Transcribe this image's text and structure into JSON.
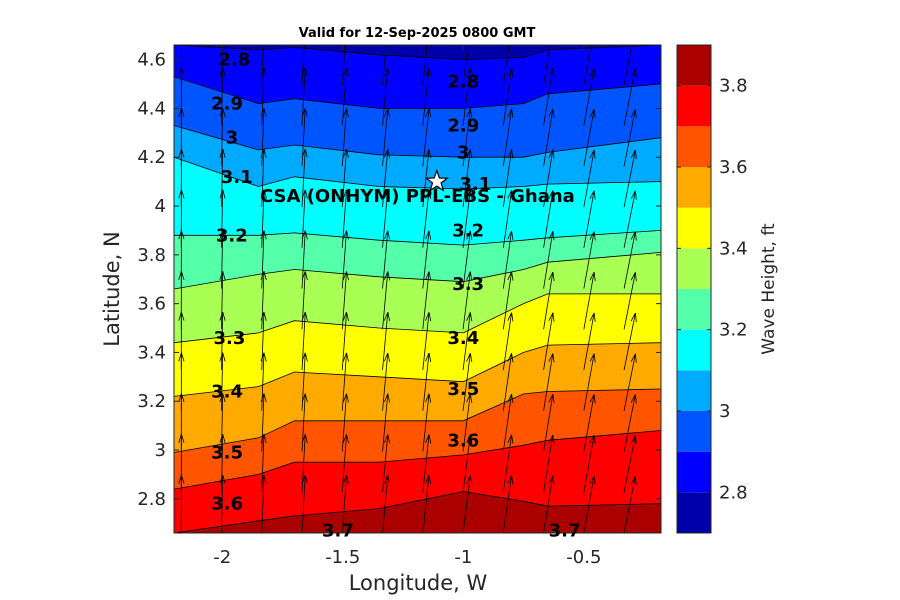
{
  "chart_data": {
    "type": "contourf",
    "title": "Valid for 12-Sep-2025 0800 GMT",
    "xlabel": "Longitude, W",
    "ylabel": "Latitude, N",
    "colorbar_label": "Wave Height, ft",
    "xlim": [
      -2.2,
      -0.18
    ],
    "ylim": [
      2.66,
      4.66
    ],
    "xticks": [
      -2,
      -1.5,
      -1,
      -0.5
    ],
    "xtick_labels": [
      "-2",
      "-1.5",
      "-1",
      "-0.5"
    ],
    "yticks": [
      2.8,
      3.0,
      3.2,
      3.4,
      3.6,
      3.8,
      4.0,
      4.2,
      4.4,
      4.6
    ],
    "ytick_labels": [
      "2.8",
      "3",
      "3.2",
      "3.4",
      "3.6",
      "3.8",
      "4",
      "4.2",
      "4.4",
      "4.6"
    ],
    "colorbar": {
      "min": 2.7,
      "max": 3.9,
      "ticks": [
        2.8,
        3.0,
        3.2,
        3.4,
        3.6,
        3.8
      ],
      "tick_labels": [
        "2.8",
        "3",
        "3.2",
        "3.4",
        "3.6",
        "3.8"
      ],
      "levels": [
        2.7,
        2.8,
        2.9,
        3.0,
        3.1,
        3.2,
        3.3,
        3.4,
        3.5,
        3.6,
        3.7,
        3.8,
        3.9
      ],
      "colors": [
        "#0000aa",
        "#0000ff",
        "#0055ff",
        "#00aaff",
        "#00ffff",
        "#55ffaa",
        "#aaff55",
        "#ffff00",
        "#ffaa00",
        "#ff5500",
        "#ff0000",
        "#aa0000"
      ]
    },
    "x_nodes": [
      -2.2,
      -1.85,
      -1.7,
      -1.35,
      -1.0,
      -0.75,
      -0.65,
      -0.18
    ],
    "contours": [
      {
        "level": 2.8,
        "y": [
          4.66,
          4.64,
          4.65,
          4.62,
          4.6,
          4.61,
          4.64,
          4.66
        ]
      },
      {
        "level": 2.9,
        "y": [
          4.53,
          4.42,
          4.44,
          4.4,
          4.4,
          4.42,
          4.46,
          4.5
        ]
      },
      {
        "level": 3.0,
        "y": [
          4.33,
          4.23,
          4.25,
          4.21,
          4.2,
          4.2,
          4.22,
          4.28
        ]
      },
      {
        "level": 3.1,
        "y": [
          4.2,
          4.08,
          4.12,
          4.08,
          4.07,
          4.08,
          4.09,
          4.1
        ]
      },
      {
        "level": 3.2,
        "y": [
          3.88,
          3.88,
          3.89,
          3.86,
          3.84,
          3.86,
          3.87,
          3.9
        ]
      },
      {
        "level": 3.3,
        "y": [
          3.66,
          3.72,
          3.74,
          3.71,
          3.69,
          3.74,
          3.77,
          3.81
        ]
      },
      {
        "level": 3.4,
        "y": [
          3.44,
          3.48,
          3.53,
          3.5,
          3.48,
          3.6,
          3.64,
          3.64
        ]
      },
      {
        "level": 3.5,
        "y": [
          3.22,
          3.26,
          3.32,
          3.3,
          3.28,
          3.4,
          3.43,
          3.44
        ]
      },
      {
        "level": 3.6,
        "y": [
          2.99,
          3.05,
          3.12,
          3.12,
          3.12,
          3.23,
          3.24,
          3.25
        ]
      },
      {
        "level": 3.7,
        "y": [
          2.84,
          2.9,
          2.95,
          2.95,
          2.98,
          3.02,
          3.04,
          3.08
        ]
      },
      {
        "level": 3.8,
        "y": [
          2.66,
          2.71,
          2.73,
          2.76,
          2.83,
          2.79,
          2.77,
          2.78
        ]
      }
    ],
    "contour_labels": [
      {
        "text": "2.8",
        "x": -1.95,
        "y": 4.6
      },
      {
        "text": "2.9",
        "x": -1.98,
        "y": 4.42
      },
      {
        "text": "3",
        "x": -1.96,
        "y": 4.28
      },
      {
        "text": "3.1",
        "x": -1.94,
        "y": 4.12
      },
      {
        "text": "3.2",
        "x": -1.96,
        "y": 3.88
      },
      {
        "text": "3.3",
        "x": -1.97,
        "y": 3.46
      },
      {
        "text": "3.4",
        "x": -1.98,
        "y": 3.24
      },
      {
        "text": "3.5",
        "x": -1.98,
        "y": 2.99
      },
      {
        "text": "3.6",
        "x": -1.98,
        "y": 2.78
      },
      {
        "text": "3.7",
        "x": -1.52,
        "y": 2.67
      },
      {
        "text": "2.8",
        "x": -1.0,
        "y": 4.51
      },
      {
        "text": "2.9",
        "x": -1.0,
        "y": 4.33
      },
      {
        "text": "3",
        "x": -1.0,
        "y": 4.22
      },
      {
        "text": "3.1",
        "x": -0.95,
        "y": 4.09
      },
      {
        "text": "3.2",
        "x": -0.98,
        "y": 3.9
      },
      {
        "text": "3.3",
        "x": -0.98,
        "y": 3.68
      },
      {
        "text": "3.4",
        "x": -1.0,
        "y": 3.46
      },
      {
        "text": "3.5",
        "x": -1.0,
        "y": 3.25
      },
      {
        "text": "3.6",
        "x": -1.0,
        "y": 3.04
      },
      {
        "text": "3.7",
        "x": -0.58,
        "y": 2.67
      }
    ],
    "site": {
      "name": "CSA (ONHYM) PPL-EBS  - Ghana",
      "lon": -1.11,
      "lat": 4.1,
      "marker": "star"
    },
    "wave_direction_vectors": {
      "spacing_deg": 0.167,
      "direction": "toward north-northeast",
      "arrow_color": "#000000"
    },
    "grid": false
  }
}
